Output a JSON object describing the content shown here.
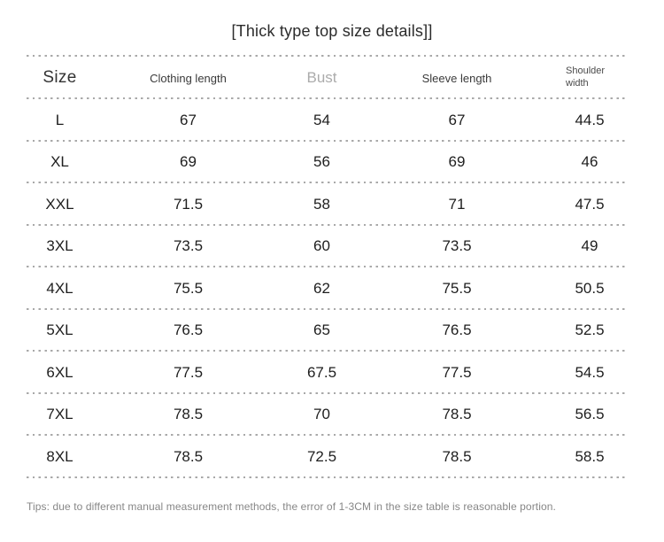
{
  "title": "[Thick type top size details]]",
  "table": {
    "headers": [
      "Size",
      "Clothing length",
      "Bust",
      "Sleeve length",
      "Shoulder width"
    ],
    "header_artifact_marks": "···",
    "rows": [
      [
        "L",
        "67",
        "54",
        "67",
        "44.5"
      ],
      [
        "XL",
        "69",
        "56",
        "69",
        "46"
      ],
      [
        "XXL",
        "71.5",
        "58",
        "71",
        "47.5"
      ],
      [
        "3XL",
        "73.5",
        "60",
        "73.5",
        "49"
      ],
      [
        "4XL",
        "75.5",
        "62",
        "75.5",
        "50.5"
      ],
      [
        "5XL",
        "76.5",
        "65",
        "76.5",
        "52.5"
      ],
      [
        "6XL",
        "77.5",
        "67.5",
        "77.5",
        "54.5"
      ],
      [
        "7XL",
        "78.5",
        "70",
        "78.5",
        "56.5"
      ],
      [
        "8XL",
        "78.5",
        "72.5",
        "78.5",
        "58.5"
      ]
    ]
  },
  "tips": "Tips: due to different manual measurement methods, the error of 1-3CM in the size table is reasonable portion.",
  "colors": {
    "background": "#ffffff",
    "text_primary": "#1e1e1e",
    "bust_header_gray": "#ababab",
    "divider_gray": "#a9a9a9",
    "tips_gray": "#878787"
  }
}
